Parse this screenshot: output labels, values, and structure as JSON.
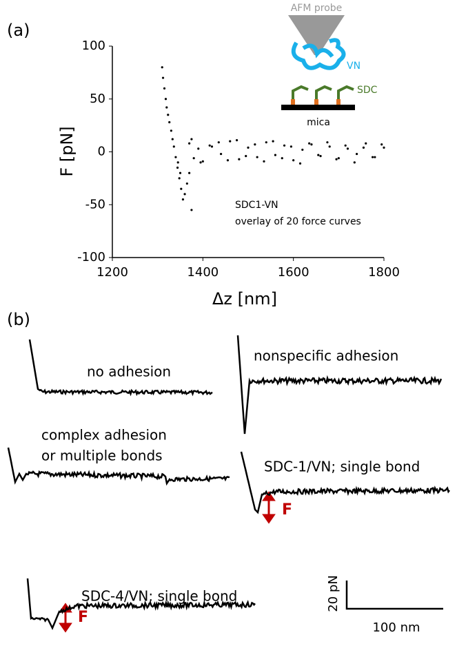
{
  "panel_labels": [
    "(a)",
    "(b)"
  ],
  "chart_data": {
    "type": "scatter",
    "x_label": "Δz [nm]",
    "y_label": "F [pN]",
    "color": "#000000",
    "xlim": [
      1200,
      1800
    ],
    "ylim": [
      -100,
      100
    ],
    "xticks": [
      1200,
      1400,
      1600,
      1800
    ],
    "yticks": [
      -100,
      -50,
      0,
      50,
      100
    ],
    "annotations": [
      "SDC1-VN",
      "overlay of 20 force curves"
    ],
    "x": [
      1310,
      1312,
      1315,
      1318,
      1320,
      1323,
      1326,
      1330,
      1333,
      1336,
      1340,
      1344,
      1348,
      1352,
      1356,
      1360,
      1365,
      1370,
      1345,
      1350,
      1375,
      1370,
      1380,
      1390,
      1400,
      1420,
      1440,
      1460,
      1480,
      1500,
      1520,
      1540,
      1560,
      1580,
      1600,
      1620,
      1640,
      1660,
      1680,
      1700,
      1720,
      1740,
      1760,
      1780,
      1800,
      1375,
      1395,
      1415,
      1435,
      1455,
      1475,
      1495,
      1515,
      1535,
      1555,
      1575,
      1595,
      1615,
      1635,
      1655,
      1675,
      1695,
      1715,
      1735,
      1755,
      1775,
      1795
    ],
    "y": [
      80,
      70,
      60,
      50,
      42,
      35,
      28,
      20,
      12,
      5,
      -5,
      -15,
      -25,
      -35,
      -45,
      -40,
      -30,
      -20,
      -10,
      -20,
      -55,
      8,
      -6,
      3,
      -9,
      5,
      -2,
      10,
      -7,
      4,
      -5,
      9,
      -3,
      6,
      -8,
      2,
      7,
      -4,
      5,
      -6,
      3,
      -2,
      8,
      -5,
      4,
      12,
      -10,
      6,
      9,
      -8,
      11,
      -4,
      7,
      -9,
      10,
      -6,
      5,
      -11,
      8,
      -3,
      9,
      -7,
      6,
      -10,
      4,
      -5,
      7
    ]
  },
  "inset": {
    "probe": "AFM probe",
    "molecule": "VN",
    "receptor": "SDC",
    "substrate": "mica"
  },
  "panel_b": {
    "labels": [
      "no adhesion",
      "nonspecific adhesion",
      "complex adhesion",
      "or multiple bonds",
      "SDC-1/VN; single bond",
      "SDC-4/VN; single bond"
    ],
    "force_labels": [
      "F",
      "F"
    ],
    "scale_y": "20 pN",
    "scale_x": "100 nm"
  }
}
